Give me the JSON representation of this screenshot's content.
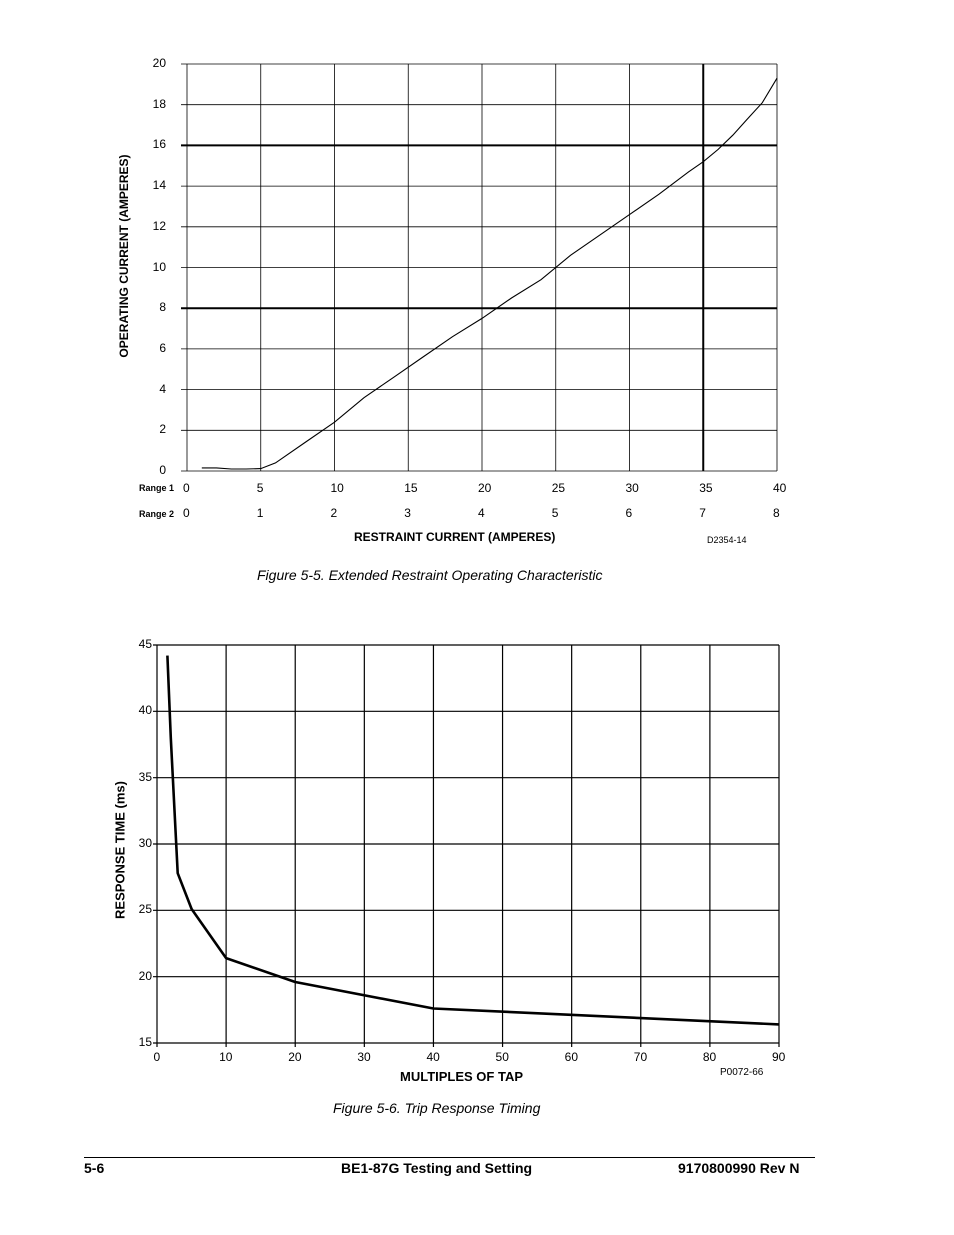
{
  "chart_data": [
    {
      "type": "line",
      "title": "Figure 5-5. Extended Restraint Operating Characteristic",
      "xlabel": "RESTRAINT CURRENT (AMPERES)",
      "ylabel": "OPERATING CURRENT (AMPERES)",
      "drawing_number": "D2354-14",
      "xlim": [
        0,
        40
      ],
      "ylim": [
        0,
        20
      ],
      "grid": true,
      "x_ticks": [
        "0",
        "5",
        "10",
        "15",
        "20",
        "25",
        "30",
        "35",
        "40"
      ],
      "y_ticks": [
        "0",
        "2",
        "4",
        "6",
        "8",
        "10",
        "12",
        "14",
        "16",
        "18",
        "20"
      ],
      "range_labels": [
        "Range 1",
        "Range 2"
      ],
      "range2_ticks": [
        "0",
        "1",
        "2",
        "3",
        "4",
        "5",
        "6",
        "7",
        "8"
      ],
      "heavy_gridlines": {
        "x": [
          35
        ],
        "y": [
          8,
          16
        ]
      },
      "series": [
        {
          "name": "Operating characteristic",
          "x": [
            1,
            2,
            3,
            4,
            5,
            6,
            8,
            10,
            12,
            14,
            16,
            18,
            20,
            22,
            24,
            26,
            28,
            30,
            32,
            34,
            35,
            36,
            37,
            38,
            39,
            40
          ],
          "y": [
            0.15,
            0.15,
            0.1,
            0.1,
            0.12,
            0.4,
            1.4,
            2.4,
            3.6,
            4.6,
            5.6,
            6.6,
            7.5,
            8.5,
            9.4,
            10.6,
            11.6,
            12.6,
            13.6,
            14.7,
            15.2,
            15.8,
            16.5,
            17.3,
            18.1,
            19.3
          ]
        }
      ]
    },
    {
      "type": "line",
      "title": "Figure 5-6. Trip Response Timing",
      "xlabel": "MULTIPLES OF TAP",
      "ylabel": "RESPONSE TIME (ms)",
      "drawing_number": "P0072-66",
      "xlim": [
        0,
        90
      ],
      "ylim": [
        15,
        45
      ],
      "grid": true,
      "x_ticks": [
        "0",
        "10",
        "20",
        "30",
        "40",
        "50",
        "60",
        "70",
        "80",
        "90"
      ],
      "y_ticks": [
        "15",
        "20",
        "25",
        "30",
        "35",
        "40",
        "45"
      ],
      "series": [
        {
          "name": "Response time",
          "x": [
            1.5,
            2,
            3,
            5,
            10,
            20,
            40,
            90
          ],
          "y": [
            44.2,
            38.0,
            27.8,
            25.1,
            21.4,
            19.6,
            17.6,
            16.4
          ]
        }
      ]
    }
  ],
  "footer": {
    "left": "5-6",
    "center": "BE1-87G Testing and Setting",
    "right": "9170800990 Rev N"
  }
}
